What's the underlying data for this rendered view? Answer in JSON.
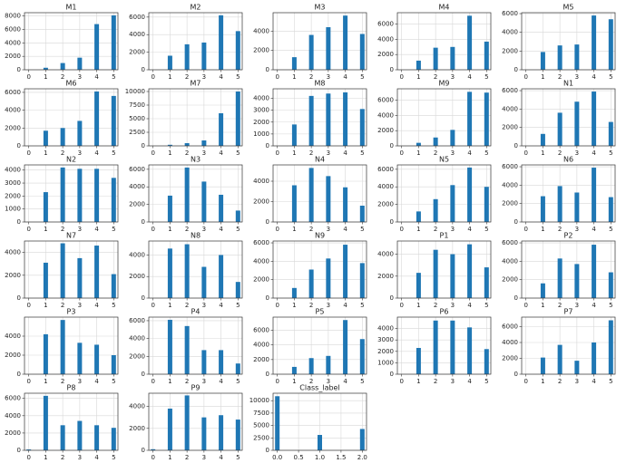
{
  "chart_data": [
    {
      "type": "bar",
      "title": "M1",
      "x": [
        0,
        1,
        2,
        3,
        4,
        5
      ],
      "values": [
        0,
        300,
        1000,
        1800,
        6800,
        8100
      ],
      "xlim": [
        -0.25,
        5.25
      ],
      "xticks": [
        0,
        1,
        2,
        3,
        4,
        5
      ],
      "ylim": [
        0,
        8500
      ],
      "yticks": [
        0,
        2000,
        4000,
        6000,
        8000
      ],
      "color": "#1f77b4",
      "grid": true
    },
    {
      "type": "bar",
      "title": "M2",
      "x": [
        0,
        1,
        2,
        3,
        4,
        5
      ],
      "values": [
        0,
        1600,
        2900,
        3100,
        6200,
        4400
      ],
      "xlim": [
        -0.25,
        5.25
      ],
      "xticks": [
        0,
        1,
        2,
        3,
        4,
        5
      ],
      "ylim": [
        0,
        6500
      ],
      "yticks": [
        0,
        2000,
        4000,
        6000
      ],
      "color": "#1f77b4",
      "grid": true
    },
    {
      "type": "bar",
      "title": "M3",
      "x": [
        0,
        1,
        2,
        3,
        4,
        5
      ],
      "values": [
        0,
        1300,
        3600,
        4400,
        5600,
        3700
      ],
      "xlim": [
        -0.25,
        5.25
      ],
      "xticks": [
        0,
        1,
        2,
        3,
        4,
        5
      ],
      "ylim": [
        0,
        5900
      ],
      "yticks": [
        0,
        2000,
        4000
      ],
      "color": "#1f77b4",
      "grid": true
    },
    {
      "type": "bar",
      "title": "M4",
      "x": [
        0,
        1,
        2,
        3,
        4,
        5
      ],
      "values": [
        0,
        1200,
        2900,
        3000,
        7100,
        3700
      ],
      "xlim": [
        -0.25,
        5.25
      ],
      "xticks": [
        0,
        1,
        2,
        3,
        4,
        5
      ],
      "ylim": [
        0,
        7500
      ],
      "yticks": [
        0,
        2000,
        4000,
        6000
      ],
      "color": "#1f77b4",
      "grid": true
    },
    {
      "type": "bar",
      "title": "M5",
      "x": [
        0,
        1,
        2,
        3,
        4,
        5
      ],
      "values": [
        0,
        1900,
        2600,
        2700,
        5800,
        5400
      ],
      "xlim": [
        -0.25,
        5.25
      ],
      "xticks": [
        0,
        1,
        2,
        3,
        4,
        5
      ],
      "ylim": [
        0,
        6100
      ],
      "yticks": [
        0,
        2000,
        4000,
        6000
      ],
      "color": "#1f77b4",
      "grid": true
    },
    {
      "type": "bar",
      "title": "M6",
      "x": [
        0,
        1,
        2,
        3,
        4,
        5
      ],
      "values": [
        0,
        1700,
        2000,
        2800,
        6100,
        5600
      ],
      "xlim": [
        -0.25,
        5.25
      ],
      "xticks": [
        0,
        1,
        2,
        3,
        4,
        5
      ],
      "ylim": [
        0,
        6400
      ],
      "yticks": [
        0,
        2000,
        4000,
        6000
      ],
      "color": "#1f77b4",
      "grid": true
    },
    {
      "type": "bar",
      "title": "M7",
      "x": [
        0,
        1,
        2,
        3,
        4,
        5
      ],
      "values": [
        0,
        200,
        500,
        1000,
        6000,
        10000
      ],
      "xlim": [
        -0.25,
        5.25
      ],
      "xticks": [
        0,
        1,
        2,
        3,
        4,
        5
      ],
      "ylim": [
        0,
        10500
      ],
      "yticks": [
        0,
        2500,
        5000,
        7500,
        10000
      ],
      "color": "#1f77b4",
      "grid": true
    },
    {
      "type": "bar",
      "title": "M8",
      "x": [
        0,
        1,
        2,
        3,
        4,
        5
      ],
      "values": [
        0,
        1800,
        4200,
        4400,
        4500,
        3100
      ],
      "xlim": [
        -0.25,
        5.25
      ],
      "xticks": [
        0,
        1,
        2,
        3,
        4,
        5
      ],
      "ylim": [
        0,
        4800
      ],
      "yticks": [
        0,
        1000,
        2000,
        3000,
        4000
      ],
      "color": "#1f77b4",
      "grid": true
    },
    {
      "type": "bar",
      "title": "M9",
      "x": [
        0,
        1,
        2,
        3,
        4,
        5
      ],
      "values": [
        0,
        400,
        1100,
        2100,
        7100,
        7000
      ],
      "xlim": [
        -0.25,
        5.25
      ],
      "xticks": [
        0,
        1,
        2,
        3,
        4,
        5
      ],
      "ylim": [
        0,
        7500
      ],
      "yticks": [
        0,
        2000,
        4000,
        6000
      ],
      "color": "#1f77b4",
      "grid": true
    },
    {
      "type": "bar",
      "title": "N1",
      "x": [
        0,
        1,
        2,
        3,
        4,
        5
      ],
      "values": [
        0,
        1300,
        3600,
        4800,
        5900,
        2600
      ],
      "xlim": [
        -0.25,
        5.25
      ],
      "xticks": [
        0,
        1,
        2,
        3,
        4,
        5
      ],
      "ylim": [
        0,
        6200
      ],
      "yticks": [
        0,
        2000,
        4000,
        6000
      ],
      "color": "#1f77b4",
      "grid": true
    },
    {
      "type": "bar",
      "title": "N2",
      "x": [
        0,
        1,
        2,
        3,
        4,
        5
      ],
      "values": [
        0,
        2300,
        4200,
        4100,
        4100,
        3400
      ],
      "xlim": [
        -0.25,
        5.25
      ],
      "xticks": [
        0,
        1,
        2,
        3,
        4,
        5
      ],
      "ylim": [
        0,
        4400
      ],
      "yticks": [
        0,
        1000,
        2000,
        3000,
        4000
      ],
      "color": "#1f77b4",
      "grid": true
    },
    {
      "type": "bar",
      "title": "N3",
      "x": [
        0,
        1,
        2,
        3,
        4,
        5
      ],
      "values": [
        0,
        3000,
        6200,
        4600,
        3100,
        1300
      ],
      "xlim": [
        -0.25,
        5.25
      ],
      "xticks": [
        0,
        1,
        2,
        3,
        4,
        5
      ],
      "ylim": [
        0,
        6500
      ],
      "yticks": [
        0,
        2000,
        4000,
        6000
      ],
      "color": "#1f77b4",
      "grid": true
    },
    {
      "type": "bar",
      "title": "N4",
      "x": [
        0,
        1,
        2,
        3,
        4,
        5
      ],
      "values": [
        0,
        3600,
        5300,
        4500,
        3400,
        1600
      ],
      "xlim": [
        -0.25,
        5.25
      ],
      "xticks": [
        0,
        1,
        2,
        3,
        4,
        5
      ],
      "ylim": [
        0,
        5600
      ],
      "yticks": [
        0,
        2000,
        4000
      ],
      "color": "#1f77b4",
      "grid": true
    },
    {
      "type": "bar",
      "title": "N5",
      "x": [
        0,
        1,
        2,
        3,
        4,
        5
      ],
      "values": [
        0,
        1200,
        2600,
        4200,
        6200,
        4000
      ],
      "xlim": [
        -0.25,
        5.25
      ],
      "xticks": [
        0,
        1,
        2,
        3,
        4,
        5
      ],
      "ylim": [
        0,
        6500
      ],
      "yticks": [
        0,
        2000,
        4000,
        6000
      ],
      "color": "#1f77b4",
      "grid": true
    },
    {
      "type": "bar",
      "title": "N6",
      "x": [
        0,
        1,
        2,
        3,
        4,
        5
      ],
      "values": [
        0,
        2800,
        3900,
        3200,
        5900,
        2700
      ],
      "xlim": [
        -0.25,
        5.25
      ],
      "xticks": [
        0,
        1,
        2,
        3,
        4,
        5
      ],
      "ylim": [
        0,
        6200
      ],
      "yticks": [
        0,
        2000,
        4000,
        6000
      ],
      "color": "#1f77b4",
      "grid": true
    },
    {
      "type": "bar",
      "title": "N7",
      "x": [
        0,
        1,
        2,
        3,
        4,
        5
      ],
      "values": [
        0,
        3100,
        4800,
        3500,
        4600,
        2100
      ],
      "xlim": [
        -0.25,
        5.25
      ],
      "xticks": [
        0,
        1,
        2,
        3,
        4,
        5
      ],
      "ylim": [
        0,
        5000
      ],
      "yticks": [
        0,
        2000,
        4000
      ],
      "color": "#1f77b4",
      "grid": true
    },
    {
      "type": "bar",
      "title": "N8",
      "x": [
        0,
        1,
        2,
        3,
        4,
        5
      ],
      "values": [
        0,
        4600,
        5000,
        2900,
        4000,
        1500
      ],
      "xlim": [
        -0.25,
        5.25
      ],
      "xticks": [
        0,
        1,
        2,
        3,
        4,
        5
      ],
      "ylim": [
        0,
        5300
      ],
      "yticks": [
        0,
        2000,
        4000
      ],
      "color": "#1f77b4",
      "grid": true
    },
    {
      "type": "bar",
      "title": "N9",
      "x": [
        0,
        1,
        2,
        3,
        4,
        5
      ],
      "values": [
        0,
        1100,
        3100,
        4300,
        5800,
        3800
      ],
      "xlim": [
        -0.25,
        5.25
      ],
      "xticks": [
        0,
        1,
        2,
        3,
        4,
        5
      ],
      "ylim": [
        0,
        6200
      ],
      "yticks": [
        0,
        2000,
        4000,
        6000
      ],
      "color": "#1f77b4",
      "grid": true
    },
    {
      "type": "bar",
      "title": "P1",
      "x": [
        0,
        1,
        2,
        3,
        4,
        5
      ],
      "values": [
        0,
        2300,
        4400,
        4000,
        4900,
        2800
      ],
      "xlim": [
        -0.25,
        5.25
      ],
      "xticks": [
        0,
        1,
        2,
        3,
        4,
        5
      ],
      "ylim": [
        0,
        5200
      ],
      "yticks": [
        0,
        2000,
        4000
      ],
      "color": "#1f77b4",
      "grid": true
    },
    {
      "type": "bar",
      "title": "P2",
      "x": [
        0,
        1,
        2,
        3,
        4,
        5
      ],
      "values": [
        0,
        1600,
        4300,
        3700,
        5800,
        2800
      ],
      "xlim": [
        -0.25,
        5.25
      ],
      "xticks": [
        0,
        1,
        2,
        3,
        4,
        5
      ],
      "ylim": [
        0,
        6200
      ],
      "yticks": [
        0,
        2000,
        4000,
        6000
      ],
      "color": "#1f77b4",
      "grid": true
    },
    {
      "type": "bar",
      "title": "P3",
      "x": [
        0,
        1,
        2,
        3,
        4,
        5
      ],
      "values": [
        0,
        4200,
        5700,
        3300,
        3100,
        2000
      ],
      "xlim": [
        -0.25,
        5.25
      ],
      "xticks": [
        0,
        1,
        2,
        3,
        4,
        5
      ],
      "ylim": [
        0,
        6000
      ],
      "yticks": [
        0,
        2000,
        4000
      ],
      "color": "#1f77b4",
      "grid": true
    },
    {
      "type": "bar",
      "title": "P4",
      "x": [
        0,
        1,
        2,
        3,
        4,
        5
      ],
      "values": [
        0,
        6100,
        5400,
        2700,
        2700,
        1200
      ],
      "xlim": [
        -0.25,
        5.25
      ],
      "xticks": [
        0,
        1,
        2,
        3,
        4,
        5
      ],
      "ylim": [
        0,
        6400
      ],
      "yticks": [
        0,
        2000,
        4000,
        6000
      ],
      "color": "#1f77b4",
      "grid": true
    },
    {
      "type": "bar",
      "title": "P5",
      "x": [
        0,
        1,
        2,
        3,
        4,
        5
      ],
      "values": [
        0,
        1000,
        2200,
        2500,
        7400,
        4800
      ],
      "xlim": [
        -0.25,
        5.25
      ],
      "xticks": [
        0,
        1,
        2,
        3,
        4,
        5
      ],
      "ylim": [
        0,
        7800
      ],
      "yticks": [
        0,
        2000,
        4000,
        6000
      ],
      "color": "#1f77b4",
      "grid": true
    },
    {
      "type": "bar",
      "title": "P6",
      "x": [
        0,
        1,
        2,
        3,
        4,
        5
      ],
      "values": [
        0,
        2300,
        4700,
        4700,
        4100,
        2200
      ],
      "xlim": [
        -0.25,
        5.25
      ],
      "xticks": [
        0,
        1,
        2,
        3,
        4,
        5
      ],
      "ylim": [
        0,
        5000
      ],
      "yticks": [
        0,
        1000,
        2000,
        3000,
        4000
      ],
      "color": "#1f77b4",
      "grid": true
    },
    {
      "type": "bar",
      "title": "P7",
      "x": [
        0,
        1,
        2,
        3,
        4,
        5
      ],
      "values": [
        0,
        2100,
        3700,
        1700,
        4000,
        6800
      ],
      "xlim": [
        -0.25,
        5.25
      ],
      "xticks": [
        0,
        1,
        2,
        3,
        4,
        5
      ],
      "ylim": [
        0,
        7200
      ],
      "yticks": [
        0,
        2000,
        4000,
        6000
      ],
      "color": "#1f77b4",
      "grid": true
    },
    {
      "type": "bar",
      "title": "P8",
      "x": [
        0,
        1,
        2,
        3,
        4,
        5
      ],
      "values": [
        100,
        6300,
        2900,
        3400,
        2900,
        2600
      ],
      "xlim": [
        -0.25,
        5.25
      ],
      "xticks": [
        0,
        1,
        2,
        3,
        4,
        5
      ],
      "ylim": [
        0,
        6600
      ],
      "yticks": [
        0,
        2000,
        4000,
        6000
      ],
      "color": "#1f77b4",
      "grid": true
    },
    {
      "type": "bar",
      "title": "P9",
      "x": [
        0,
        1,
        2,
        3,
        4,
        5
      ],
      "values": [
        100,
        3800,
        5000,
        3000,
        3200,
        2800
      ],
      "xlim": [
        -0.25,
        5.25
      ],
      "xticks": [
        0,
        1,
        2,
        3,
        4,
        5
      ],
      "ylim": [
        0,
        5200
      ],
      "yticks": [
        0,
        2000,
        4000
      ],
      "color": "#1f77b4",
      "grid": true
    },
    {
      "type": "bar",
      "title": "Class_label",
      "x": [
        0,
        1,
        2
      ],
      "values": [
        10900,
        3100,
        4300
      ],
      "xlim": [
        -0.1,
        2.1
      ],
      "xticks": [
        {
          "value": 0,
          "label": "0.0"
        },
        {
          "value": 0.5,
          "label": "0.5"
        },
        {
          "value": 1,
          "label": "1.0"
        },
        {
          "value": 1.5,
          "label": "1.5"
        },
        {
          "value": 2,
          "label": "2.0"
        }
      ],
      "ylim": [
        0,
        11500
      ],
      "yticks": [
        0,
        2500,
        5000,
        7500,
        10000
      ],
      "color": "#1f77b4",
      "grid": true
    }
  ]
}
